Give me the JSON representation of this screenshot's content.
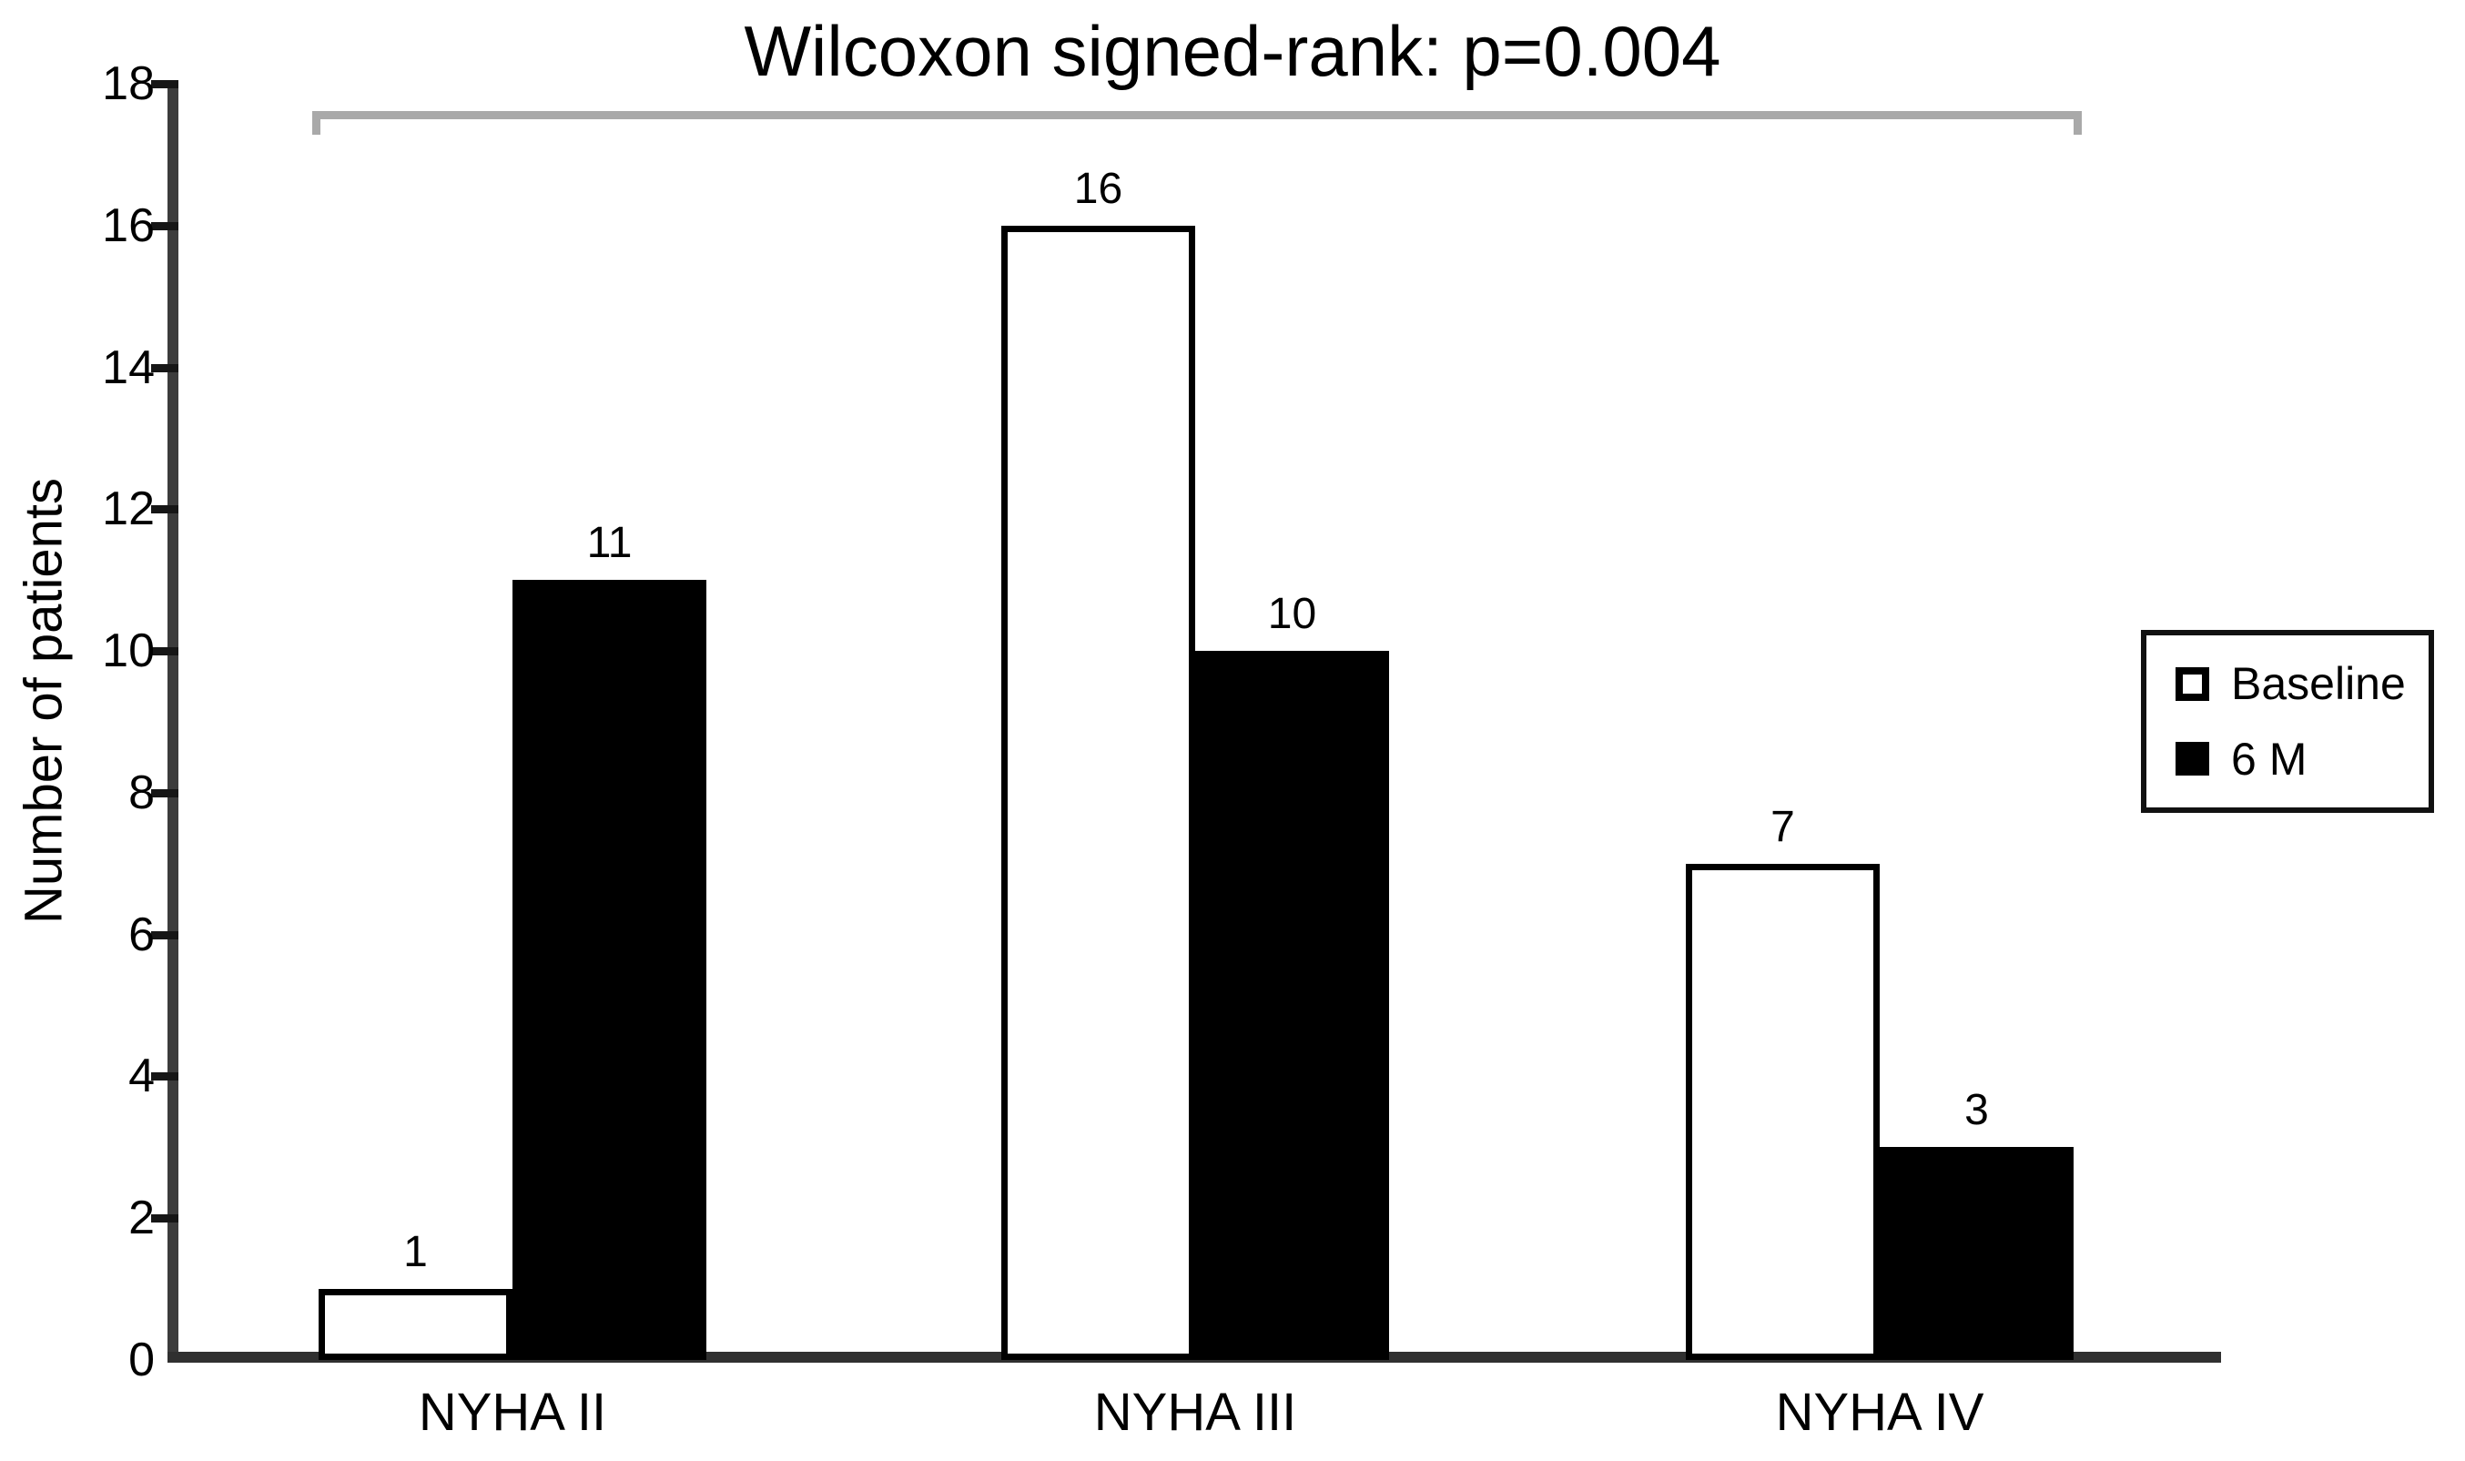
{
  "chart_data": {
    "type": "bar",
    "title": "Wilcoxon signed-rank: p=0.004",
    "xlabel": "",
    "ylabel": "Number of patients",
    "categories": [
      "NYHA II",
      "NYHA III",
      "NYHA IV"
    ],
    "series": [
      {
        "name": "Baseline",
        "values": [
          1,
          16,
          7
        ],
        "fill": "#ffffff",
        "stroke": "#000000"
      },
      {
        "name": "6 M",
        "values": [
          11,
          10,
          3
        ],
        "fill": "#000000",
        "stroke": "#000000"
      }
    ],
    "bar_value_labels": [
      {
        "series": "Baseline",
        "labels": [
          "1",
          "16",
          "7"
        ]
      },
      {
        "series": "6 M",
        "labels": [
          "11",
          "10",
          "3"
        ]
      }
    ],
    "ylim": [
      0,
      18
    ],
    "yticks": [
      0,
      2,
      4,
      6,
      8,
      10,
      12,
      14,
      16,
      18
    ],
    "grid": false,
    "legend_position": "right",
    "annotation": {
      "type": "significance-bracket",
      "label": "Wilcoxon signed-rank: p=0.004",
      "spans": "all categories"
    }
  },
  "style": {
    "bracket_color": "#a9a9a9",
    "axis_color": "#3c3c3c",
    "bar_black": "#000000",
    "bar_white": "#ffffff",
    "text_color": "#000000",
    "background": "#ffffff"
  }
}
